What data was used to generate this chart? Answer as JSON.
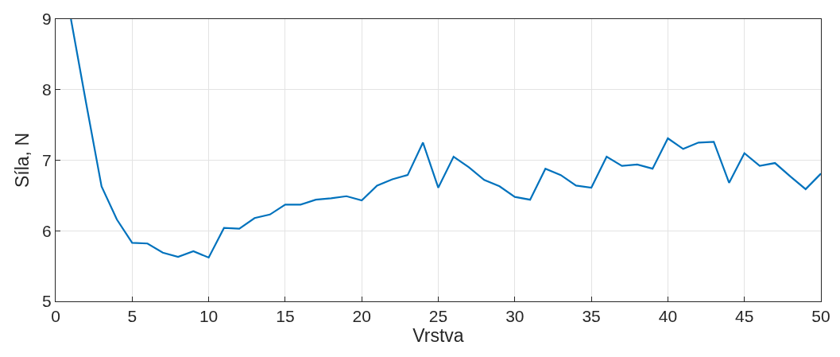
{
  "chart_data": {
    "type": "line",
    "xlabel": "Vrstva",
    "ylabel": "Síla, N",
    "x": [
      1,
      2,
      3,
      4,
      5,
      6,
      7,
      8,
      9,
      10,
      11,
      12,
      13,
      14,
      15,
      16,
      17,
      18,
      19,
      20,
      21,
      22,
      23,
      24,
      25,
      26,
      27,
      28,
      29,
      30,
      31,
      32,
      33,
      34,
      35,
      36,
      37,
      38,
      39,
      40,
      41,
      42,
      43,
      44,
      45,
      46,
      47,
      48,
      49,
      50
    ],
    "series": [
      {
        "color": "#0072bd",
        "values": [
          9.0,
          7.8,
          6.63,
          6.16,
          5.83,
          5.82,
          5.69,
          5.63,
          5.71,
          5.62,
          6.04,
          6.03,
          6.18,
          6.23,
          6.37,
          6.37,
          6.44,
          6.46,
          6.49,
          6.43,
          6.64,
          6.73,
          6.79,
          7.25,
          6.61,
          7.05,
          6.9,
          6.72,
          6.63,
          6.48,
          6.44,
          6.88,
          6.79,
          6.64,
          6.61,
          7.05,
          6.92,
          6.94,
          6.88,
          7.31,
          7.16,
          7.25,
          7.26,
          6.68,
          7.1,
          6.92,
          6.96,
          6.77,
          6.59,
          6.81
        ]
      }
    ],
    "xlim": [
      0,
      50
    ],
    "xticks": [
      0,
      5,
      10,
      15,
      20,
      25,
      30,
      35,
      40,
      45,
      50
    ],
    "ylim": [
      5,
      9
    ],
    "yticks": [
      5,
      6,
      7,
      8,
      9
    ],
    "grid": true,
    "marker": "none",
    "line_style": "solid"
  }
}
